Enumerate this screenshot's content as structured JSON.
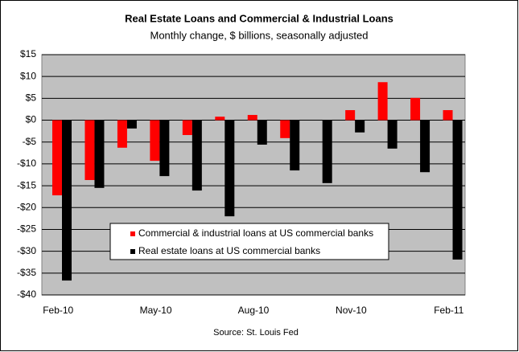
{
  "chart_data": {
    "type": "bar",
    "title": "Real Estate Loans and Commercial & Industrial Loans",
    "subtitle": "Monthly change, $ billions, seasonally adjusted",
    "source": "Source: St. Louis Fed",
    "categories": [
      "Feb-10",
      null,
      null,
      "May-10",
      null,
      null,
      "Aug-10",
      null,
      null,
      "Nov-10",
      null,
      null,
      "Feb-11"
    ],
    "series": [
      {
        "name": "Commercial & industrial loans at US commercial banks",
        "color": "#ff0000",
        "values": [
          -17.2,
          -13.7,
          -6.3,
          -9.3,
          -3.4,
          0.8,
          1.2,
          -4.1,
          0,
          2.3,
          8.7,
          5.1,
          2.3
        ]
      },
      {
        "name": "Real estate loans at US commercial banks",
        "color": "#000000",
        "values": [
          -36.7,
          -15.5,
          -1.9,
          -12.8,
          -16.1,
          -22,
          -5.6,
          -11.5,
          -14.4,
          -2.8,
          -6.5,
          -11.9,
          -31.9
        ]
      }
    ],
    "ylim": [
      -40,
      15
    ],
    "yticks": [
      {
        "value": -40,
        "label": "-$40"
      },
      {
        "value": -35,
        "label": "-$35"
      },
      {
        "value": -30,
        "label": "-$30"
      },
      {
        "value": -25,
        "label": "-$25"
      },
      {
        "value": -20,
        "label": "-$20"
      },
      {
        "value": -15,
        "label": "-$15"
      },
      {
        "value": -10,
        "label": "-$10"
      },
      {
        "value": -5,
        "label": "-$5"
      },
      {
        "value": 0,
        "label": "$0"
      },
      {
        "value": 5,
        "label": "$5"
      },
      {
        "value": 10,
        "label": "$10"
      },
      {
        "value": 15,
        "label": "$15"
      }
    ],
    "grid": true
  }
}
